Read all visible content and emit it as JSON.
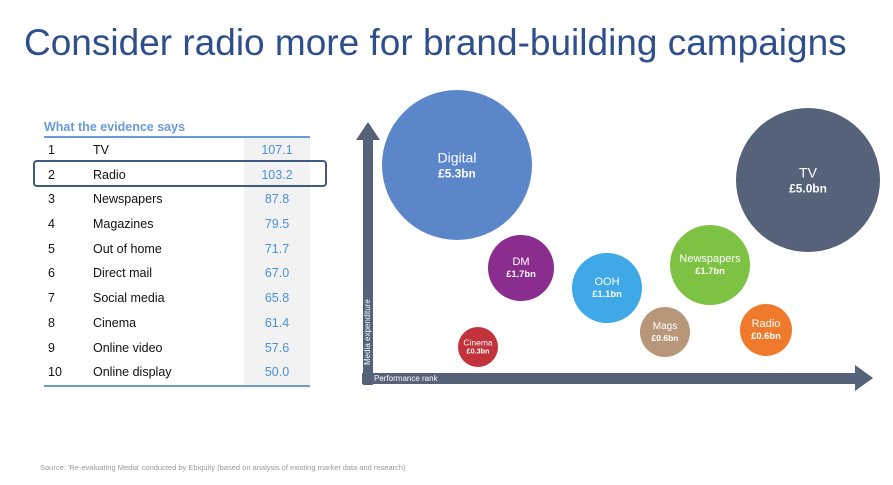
{
  "title": "Consider radio more for brand-building campaigns",
  "table": {
    "header": "What the evidence says",
    "rows": [
      {
        "rank": "1",
        "name": "TV",
        "value": "107.1"
      },
      {
        "rank": "2",
        "name": "Radio",
        "value": "103.2"
      },
      {
        "rank": "3",
        "name": "Newspapers",
        "value": "87.8"
      },
      {
        "rank": "4",
        "name": "Magazines",
        "value": "79.5"
      },
      {
        "rank": "5",
        "name": "Out of home",
        "value": "71.7"
      },
      {
        "rank": "6",
        "name": "Direct mail",
        "value": "67.0"
      },
      {
        "rank": "7",
        "name": "Social media",
        "value": "65.8"
      },
      {
        "rank": "8",
        "name": "Cinema",
        "value": "61.4"
      },
      {
        "rank": "9",
        "name": "Online video",
        "value": "57.6"
      },
      {
        "rank": "10",
        "name": "Online display",
        "value": "50.0"
      }
    ]
  },
  "chart": {
    "y_axis": "Media expenditure",
    "x_axis": "Performance rank",
    "axis_color": "#55627a",
    "bubbles": [
      {
        "name": "Digital",
        "value": "£5.3bn",
        "color": "#5b86c9"
      },
      {
        "name": "TV",
        "value": "£5.0bn",
        "color": "#56627a"
      },
      {
        "name": "DM",
        "value": "£1.7bn",
        "color": "#8b2c8f"
      },
      {
        "name": "OOH",
        "value": "£1.1bn",
        "color": "#3fa9e8"
      },
      {
        "name": "Newspapers",
        "value": "£1.7bn",
        "color": "#7dc242"
      },
      {
        "name": "Mags",
        "value": "£0.6bn",
        "color": "#b8967a"
      },
      {
        "name": "Radio",
        "value": "£0.6bn",
        "color": "#f07a2c"
      },
      {
        "name": "Cinema",
        "value": "£0.3bn",
        "color": "#c1323a"
      }
    ]
  },
  "source": "Source: 'Re-evaluating Media' conducted by Ebiquity (based on analysis of existing market data and research)"
}
